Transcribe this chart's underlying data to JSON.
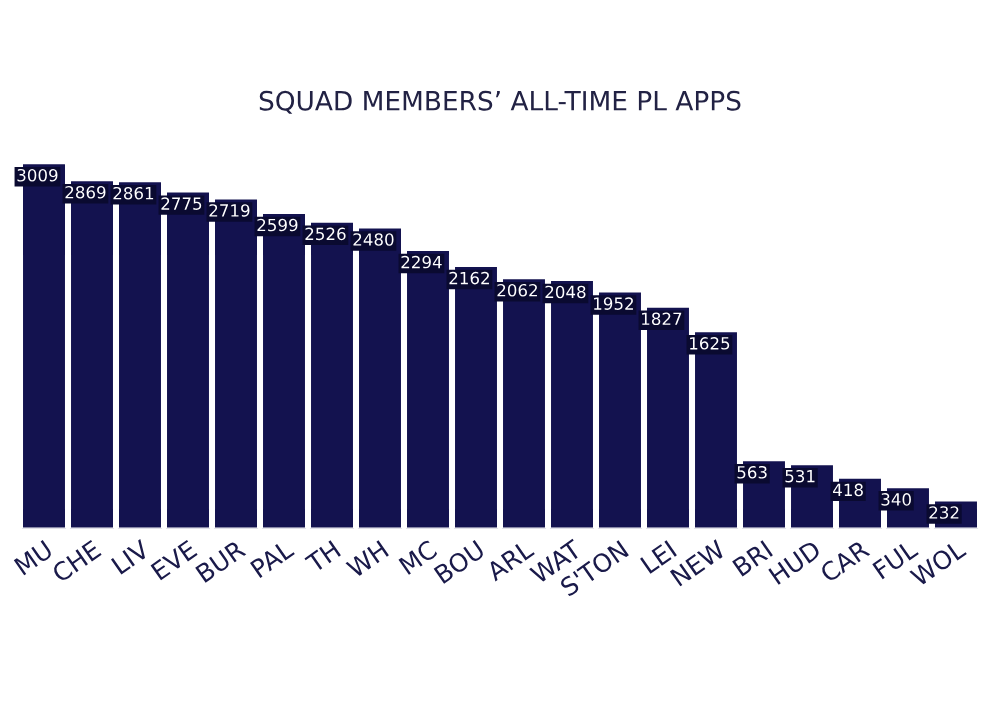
{
  "chart_data": {
    "type": "bar",
    "title": "SQUAD MEMBERS’ ALL-TIME PL APPS",
    "categories": [
      "MU",
      "CHE",
      "LIV",
      "EVE",
      "BUR",
      "PAL",
      "TH",
      "WH",
      "MC",
      "BOU",
      "ARL",
      "WAT",
      "S'TON",
      "LEI",
      "NEW",
      "BRI",
      "HUD",
      "CAR",
      "FUL",
      "WOL"
    ],
    "values": [
      3009,
      2869,
      2861,
      2775,
      2719,
      2599,
      2526,
      2480,
      2294,
      2162,
      2062,
      2048,
      1952,
      1827,
      1625,
      563,
      531,
      418,
      340,
      232
    ],
    "color": "#13124f",
    "data_labels": true,
    "grid": false,
    "legend": false
  }
}
